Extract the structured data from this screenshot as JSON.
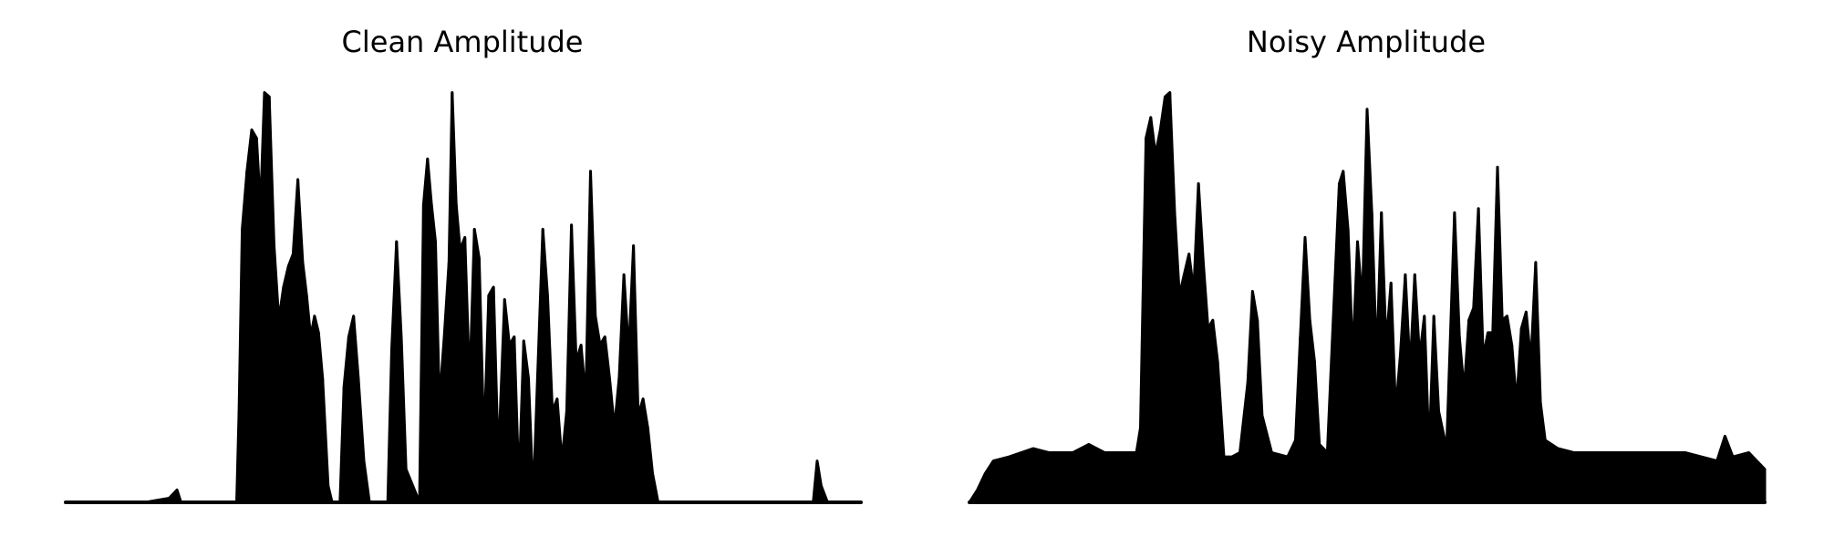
{
  "chart_data": [
    {
      "type": "area",
      "title": "Clean Amplitude",
      "xlabel": "",
      "ylabel": "",
      "axes_visible": false,
      "grid": false,
      "color": "#000000",
      "ylim": [
        0,
        1
      ],
      "envelope": [
        [
          0.0,
          0.0
        ],
        [
          0.05,
          0.0
        ],
        [
          0.1,
          0.0
        ],
        [
          0.13,
          0.01
        ],
        [
          0.14,
          0.03
        ],
        [
          0.145,
          0.0
        ],
        [
          0.2,
          0.0
        ],
        [
          0.215,
          0.0
        ],
        [
          0.218,
          0.22
        ],
        [
          0.222,
          0.66
        ],
        [
          0.228,
          0.8
        ],
        [
          0.234,
          0.9
        ],
        [
          0.24,
          0.88
        ],
        [
          0.245,
          0.71
        ],
        [
          0.25,
          0.99
        ],
        [
          0.256,
          0.98
        ],
        [
          0.262,
          0.62
        ],
        [
          0.268,
          0.44
        ],
        [
          0.274,
          0.52
        ],
        [
          0.28,
          0.57
        ],
        [
          0.286,
          0.6
        ],
        [
          0.292,
          0.78
        ],
        [
          0.298,
          0.58
        ],
        [
          0.303,
          0.5
        ],
        [
          0.308,
          0.4
        ],
        [
          0.313,
          0.45
        ],
        [
          0.318,
          0.41
        ],
        [
          0.323,
          0.3
        ],
        [
          0.33,
          0.04
        ],
        [
          0.335,
          0.0
        ],
        [
          0.345,
          0.0
        ],
        [
          0.35,
          0.28
        ],
        [
          0.356,
          0.4
        ],
        [
          0.362,
          0.45
        ],
        [
          0.368,
          0.3
        ],
        [
          0.375,
          0.1
        ],
        [
          0.382,
          0.0
        ],
        [
          0.405,
          0.0
        ],
        [
          0.41,
          0.37
        ],
        [
          0.416,
          0.63
        ],
        [
          0.422,
          0.4
        ],
        [
          0.428,
          0.08
        ],
        [
          0.445,
          0.0
        ],
        [
          0.45,
          0.72
        ],
        [
          0.455,
          0.83
        ],
        [
          0.46,
          0.72
        ],
        [
          0.465,
          0.63
        ],
        [
          0.47,
          0.24
        ],
        [
          0.476,
          0.4
        ],
        [
          0.482,
          0.58
        ],
        [
          0.486,
          0.99
        ],
        [
          0.491,
          0.72
        ],
        [
          0.496,
          0.61
        ],
        [
          0.502,
          0.64
        ],
        [
          0.508,
          0.28
        ],
        [
          0.514,
          0.66
        ],
        [
          0.52,
          0.59
        ],
        [
          0.526,
          0.14
        ],
        [
          0.532,
          0.5
        ],
        [
          0.538,
          0.52
        ],
        [
          0.544,
          0.1
        ],
        [
          0.552,
          0.49
        ],
        [
          0.558,
          0.38
        ],
        [
          0.564,
          0.4
        ],
        [
          0.57,
          0.04
        ],
        [
          0.576,
          0.39
        ],
        [
          0.582,
          0.3
        ],
        [
          0.588,
          0.01
        ],
        [
          0.6,
          0.66
        ],
        [
          0.606,
          0.5
        ],
        [
          0.612,
          0.22
        ],
        [
          0.618,
          0.25
        ],
        [
          0.624,
          0.1
        ],
        [
          0.63,
          0.22
        ],
        [
          0.636,
          0.67
        ],
        [
          0.642,
          0.34
        ],
        [
          0.648,
          0.38
        ],
        [
          0.654,
          0.25
        ],
        [
          0.66,
          0.8
        ],
        [
          0.666,
          0.45
        ],
        [
          0.672,
          0.38
        ],
        [
          0.678,
          0.4
        ],
        [
          0.684,
          0.3
        ],
        [
          0.69,
          0.18
        ],
        [
          0.696,
          0.3
        ],
        [
          0.702,
          0.55
        ],
        [
          0.708,
          0.36
        ],
        [
          0.714,
          0.62
        ],
        [
          0.72,
          0.21
        ],
        [
          0.726,
          0.25
        ],
        [
          0.732,
          0.18
        ],
        [
          0.738,
          0.07
        ],
        [
          0.745,
          0.0
        ],
        [
          0.78,
          0.0
        ],
        [
          0.85,
          0.0
        ],
        [
          0.92,
          0.0
        ],
        [
          0.94,
          0.0
        ],
        [
          0.945,
          0.1
        ],
        [
          0.95,
          0.04
        ],
        [
          0.958,
          0.0
        ],
        [
          1.0,
          0.0
        ]
      ]
    },
    {
      "type": "area",
      "title": "Noisy Amplitude",
      "xlabel": "",
      "ylabel": "",
      "axes_visible": false,
      "grid": false,
      "color": "#000000",
      "ylim": [
        0,
        1
      ],
      "envelope": [
        [
          0.0,
          0.0
        ],
        [
          0.01,
          0.03
        ],
        [
          0.02,
          0.07
        ],
        [
          0.03,
          0.1
        ],
        [
          0.05,
          0.11
        ],
        [
          0.08,
          0.13
        ],
        [
          0.1,
          0.12
        ],
        [
          0.13,
          0.12
        ],
        [
          0.15,
          0.14
        ],
        [
          0.17,
          0.12
        ],
        [
          0.21,
          0.12
        ],
        [
          0.215,
          0.18
        ],
        [
          0.222,
          0.88
        ],
        [
          0.228,
          0.93
        ],
        [
          0.234,
          0.84
        ],
        [
          0.24,
          0.9
        ],
        [
          0.246,
          0.98
        ],
        [
          0.252,
          0.99
        ],
        [
          0.258,
          0.7
        ],
        [
          0.264,
          0.5
        ],
        [
          0.27,
          0.55
        ],
        [
          0.276,
          0.6
        ],
        [
          0.282,
          0.51
        ],
        [
          0.288,
          0.77
        ],
        [
          0.294,
          0.58
        ],
        [
          0.3,
          0.42
        ],
        [
          0.306,
          0.44
        ],
        [
          0.312,
          0.34
        ],
        [
          0.32,
          0.11
        ],
        [
          0.33,
          0.11
        ],
        [
          0.34,
          0.12
        ],
        [
          0.35,
          0.29
        ],
        [
          0.356,
          0.51
        ],
        [
          0.362,
          0.44
        ],
        [
          0.368,
          0.21
        ],
        [
          0.38,
          0.12
        ],
        [
          0.4,
          0.11
        ],
        [
          0.41,
          0.15
        ],
        [
          0.416,
          0.4
        ],
        [
          0.422,
          0.64
        ],
        [
          0.428,
          0.44
        ],
        [
          0.434,
          0.34
        ],
        [
          0.44,
          0.14
        ],
        [
          0.45,
          0.12
        ],
        [
          0.465,
          0.77
        ],
        [
          0.47,
          0.8
        ],
        [
          0.476,
          0.66
        ],
        [
          0.482,
          0.35
        ],
        [
          0.488,
          0.63
        ],
        [
          0.494,
          0.48
        ],
        [
          0.5,
          0.95
        ],
        [
          0.506,
          0.7
        ],
        [
          0.512,
          0.34
        ],
        [
          0.518,
          0.7
        ],
        [
          0.524,
          0.38
        ],
        [
          0.53,
          0.53
        ],
        [
          0.536,
          0.22
        ],
        [
          0.542,
          0.36
        ],
        [
          0.548,
          0.55
        ],
        [
          0.554,
          0.32
        ],
        [
          0.56,
          0.55
        ],
        [
          0.566,
          0.35
        ],
        [
          0.572,
          0.45
        ],
        [
          0.578,
          0.12
        ],
        [
          0.584,
          0.45
        ],
        [
          0.59,
          0.22
        ],
        [
          0.6,
          0.13
        ],
        [
          0.61,
          0.7
        ],
        [
          0.616,
          0.4
        ],
        [
          0.622,
          0.27
        ],
        [
          0.628,
          0.44
        ],
        [
          0.634,
          0.47
        ],
        [
          0.64,
          0.71
        ],
        [
          0.646,
          0.35
        ],
        [
          0.652,
          0.41
        ],
        [
          0.658,
          0.41
        ],
        [
          0.664,
          0.81
        ],
        [
          0.67,
          0.44
        ],
        [
          0.676,
          0.45
        ],
        [
          0.682,
          0.38
        ],
        [
          0.688,
          0.24
        ],
        [
          0.694,
          0.42
        ],
        [
          0.7,
          0.46
        ],
        [
          0.706,
          0.34
        ],
        [
          0.712,
          0.58
        ],
        [
          0.718,
          0.24
        ],
        [
          0.724,
          0.15
        ],
        [
          0.74,
          0.13
        ],
        [
          0.76,
          0.12
        ],
        [
          0.8,
          0.12
        ],
        [
          0.85,
          0.12
        ],
        [
          0.9,
          0.12
        ],
        [
          0.94,
          0.1
        ],
        [
          0.95,
          0.16
        ],
        [
          0.96,
          0.11
        ],
        [
          0.98,
          0.12
        ],
        [
          1.0,
          0.08
        ]
      ]
    }
  ]
}
